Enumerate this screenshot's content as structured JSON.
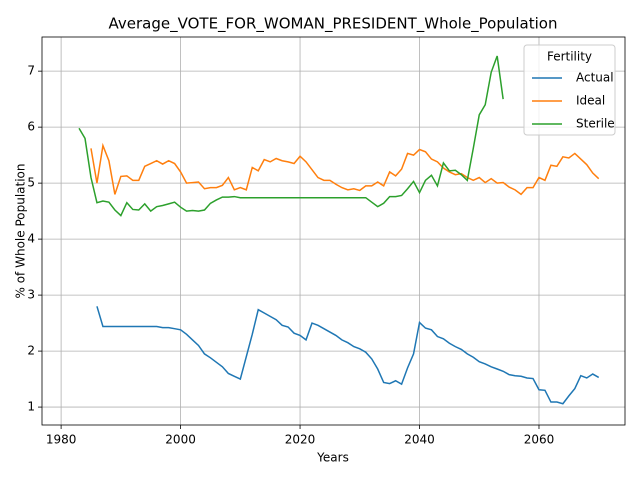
{
  "chart_data": {
    "type": "line",
    "title": "Average_VOTE_FOR_WOMAN_PRESIDENT_Whole_Population",
    "xlabel": "Years",
    "ylabel": "% of Whole Population",
    "x": [
      1983,
      1984,
      1985,
      1986,
      1987,
      1988,
      1989,
      1990,
      1991,
      1992,
      1993,
      1994,
      1995,
      1996,
      1997,
      1998,
      1999,
      2000,
      2001,
      2002,
      2003,
      2004,
      2005,
      2006,
      2007,
      2008,
      2009,
      2010,
      2011,
      2012,
      2013,
      2014,
      2015,
      2016,
      2017,
      2018,
      2019,
      2020,
      2021,
      2022,
      2023,
      2024,
      2025,
      2026,
      2027,
      2028,
      2029,
      2030,
      2031,
      2032,
      2033,
      2034,
      2035,
      2036,
      2037,
      2038,
      2039,
      2040,
      2041,
      2042,
      2043,
      2044,
      2045,
      2046,
      2047,
      2048,
      2049,
      2050,
      2051,
      2052,
      2053,
      2054,
      2055,
      2056,
      2057,
      2058,
      2059,
      2060,
      2061,
      2062,
      2063,
      2064,
      2065,
      2066,
      2067,
      2068,
      2069,
      2070
    ],
    "series": [
      {
        "name": "Actual",
        "color": "#1f77b4",
        "values": [
          null,
          null,
          null,
          2.8,
          2.44,
          2.44,
          2.44,
          2.44,
          2.44,
          2.44,
          2.44,
          2.44,
          2.44,
          2.44,
          2.42,
          2.42,
          2.4,
          2.38,
          2.3,
          2.2,
          2.1,
          1.95,
          1.88,
          1.8,
          1.72,
          1.6,
          1.55,
          1.5,
          1.9,
          2.3,
          2.74,
          2.68,
          2.62,
          2.56,
          2.46,
          2.43,
          2.32,
          2.28,
          2.2,
          2.5,
          2.46,
          2.4,
          2.34,
          2.28,
          2.2,
          2.15,
          2.08,
          2.04,
          1.98,
          1.86,
          1.68,
          1.44,
          1.42,
          1.47,
          1.41,
          1.7,
          1.95,
          2.51,
          2.41,
          2.38,
          2.26,
          2.22,
          2.14,
          2.08,
          2.03,
          1.95,
          1.89,
          1.81,
          1.77,
          1.72,
          1.68,
          1.64,
          1.58,
          1.56,
          1.55,
          1.52,
          1.51,
          1.31,
          1.3,
          1.09,
          1.09,
          1.06,
          1.2,
          1.33,
          1.56,
          1.52,
          1.59,
          1.53
        ]
      },
      {
        "name": "Ideal",
        "color": "#ff7f0e",
        "values": [
          null,
          null,
          5.62,
          5.0,
          5.67,
          5.4,
          4.8,
          5.12,
          5.13,
          5.05,
          5.05,
          5.3,
          5.35,
          5.4,
          5.34,
          5.4,
          5.35,
          5.2,
          5.0,
          5.01,
          5.02,
          4.9,
          4.92,
          4.92,
          4.96,
          5.1,
          4.88,
          4.92,
          4.88,
          5.28,
          5.22,
          5.42,
          5.38,
          5.44,
          5.4,
          5.38,
          5.35,
          5.48,
          5.38,
          5.24,
          5.1,
          5.05,
          5.05,
          4.98,
          4.92,
          4.88,
          4.9,
          4.87,
          4.95,
          4.95,
          5.02,
          4.95,
          5.2,
          5.13,
          5.25,
          5.53,
          5.5,
          5.6,
          5.56,
          5.43,
          5.38,
          5.27,
          5.2,
          5.15,
          5.17,
          5.1,
          5.05,
          5.1,
          5.01,
          5.08,
          5.0,
          5.01,
          4.93,
          4.88,
          4.8,
          4.92,
          4.92,
          5.1,
          5.05,
          5.32,
          5.3,
          5.47,
          5.45,
          5.53,
          5.43,
          5.33,
          5.18,
          5.08
        ]
      },
      {
        "name": "Sterile",
        "color": "#2ca02c",
        "values": [
          5.98,
          5.8,
          5.1,
          4.65,
          4.68,
          4.66,
          4.52,
          4.42,
          4.65,
          4.53,
          4.52,
          4.63,
          4.5,
          4.58,
          4.6,
          4.63,
          4.66,
          4.57,
          4.5,
          4.51,
          4.5,
          4.52,
          4.64,
          4.7,
          4.75,
          4.75,
          4.76,
          4.74,
          4.74,
          4.74,
          4.74,
          4.74,
          4.74,
          4.74,
          4.74,
          4.74,
          4.74,
          4.74,
          4.74,
          4.74,
          4.74,
          4.74,
          4.74,
          4.74,
          4.74,
          4.74,
          4.74,
          4.74,
          4.74,
          4.66,
          4.58,
          4.64,
          4.76,
          4.76,
          4.78,
          4.9,
          5.03,
          4.83,
          5.05,
          5.14,
          4.95,
          5.36,
          5.22,
          5.23,
          5.15,
          5.05,
          5.62,
          6.22,
          6.4,
          6.98,
          7.27,
          6.5,
          null,
          null,
          null,
          null,
          null,
          null,
          null,
          null,
          null,
          null,
          null,
          null,
          null,
          null,
          null,
          null
        ]
      }
    ],
    "xlim": [
      1976.8,
      2074.4
    ],
    "xticks": [
      1980,
      2000,
      2020,
      2040,
      2060
    ],
    "ylim": [
      0.68,
      7.61
    ],
    "yticks": [
      1,
      2,
      3,
      4,
      5,
      6,
      7
    ],
    "grid": true,
    "legend": {
      "title": "Fertility",
      "position": "upper right"
    }
  }
}
